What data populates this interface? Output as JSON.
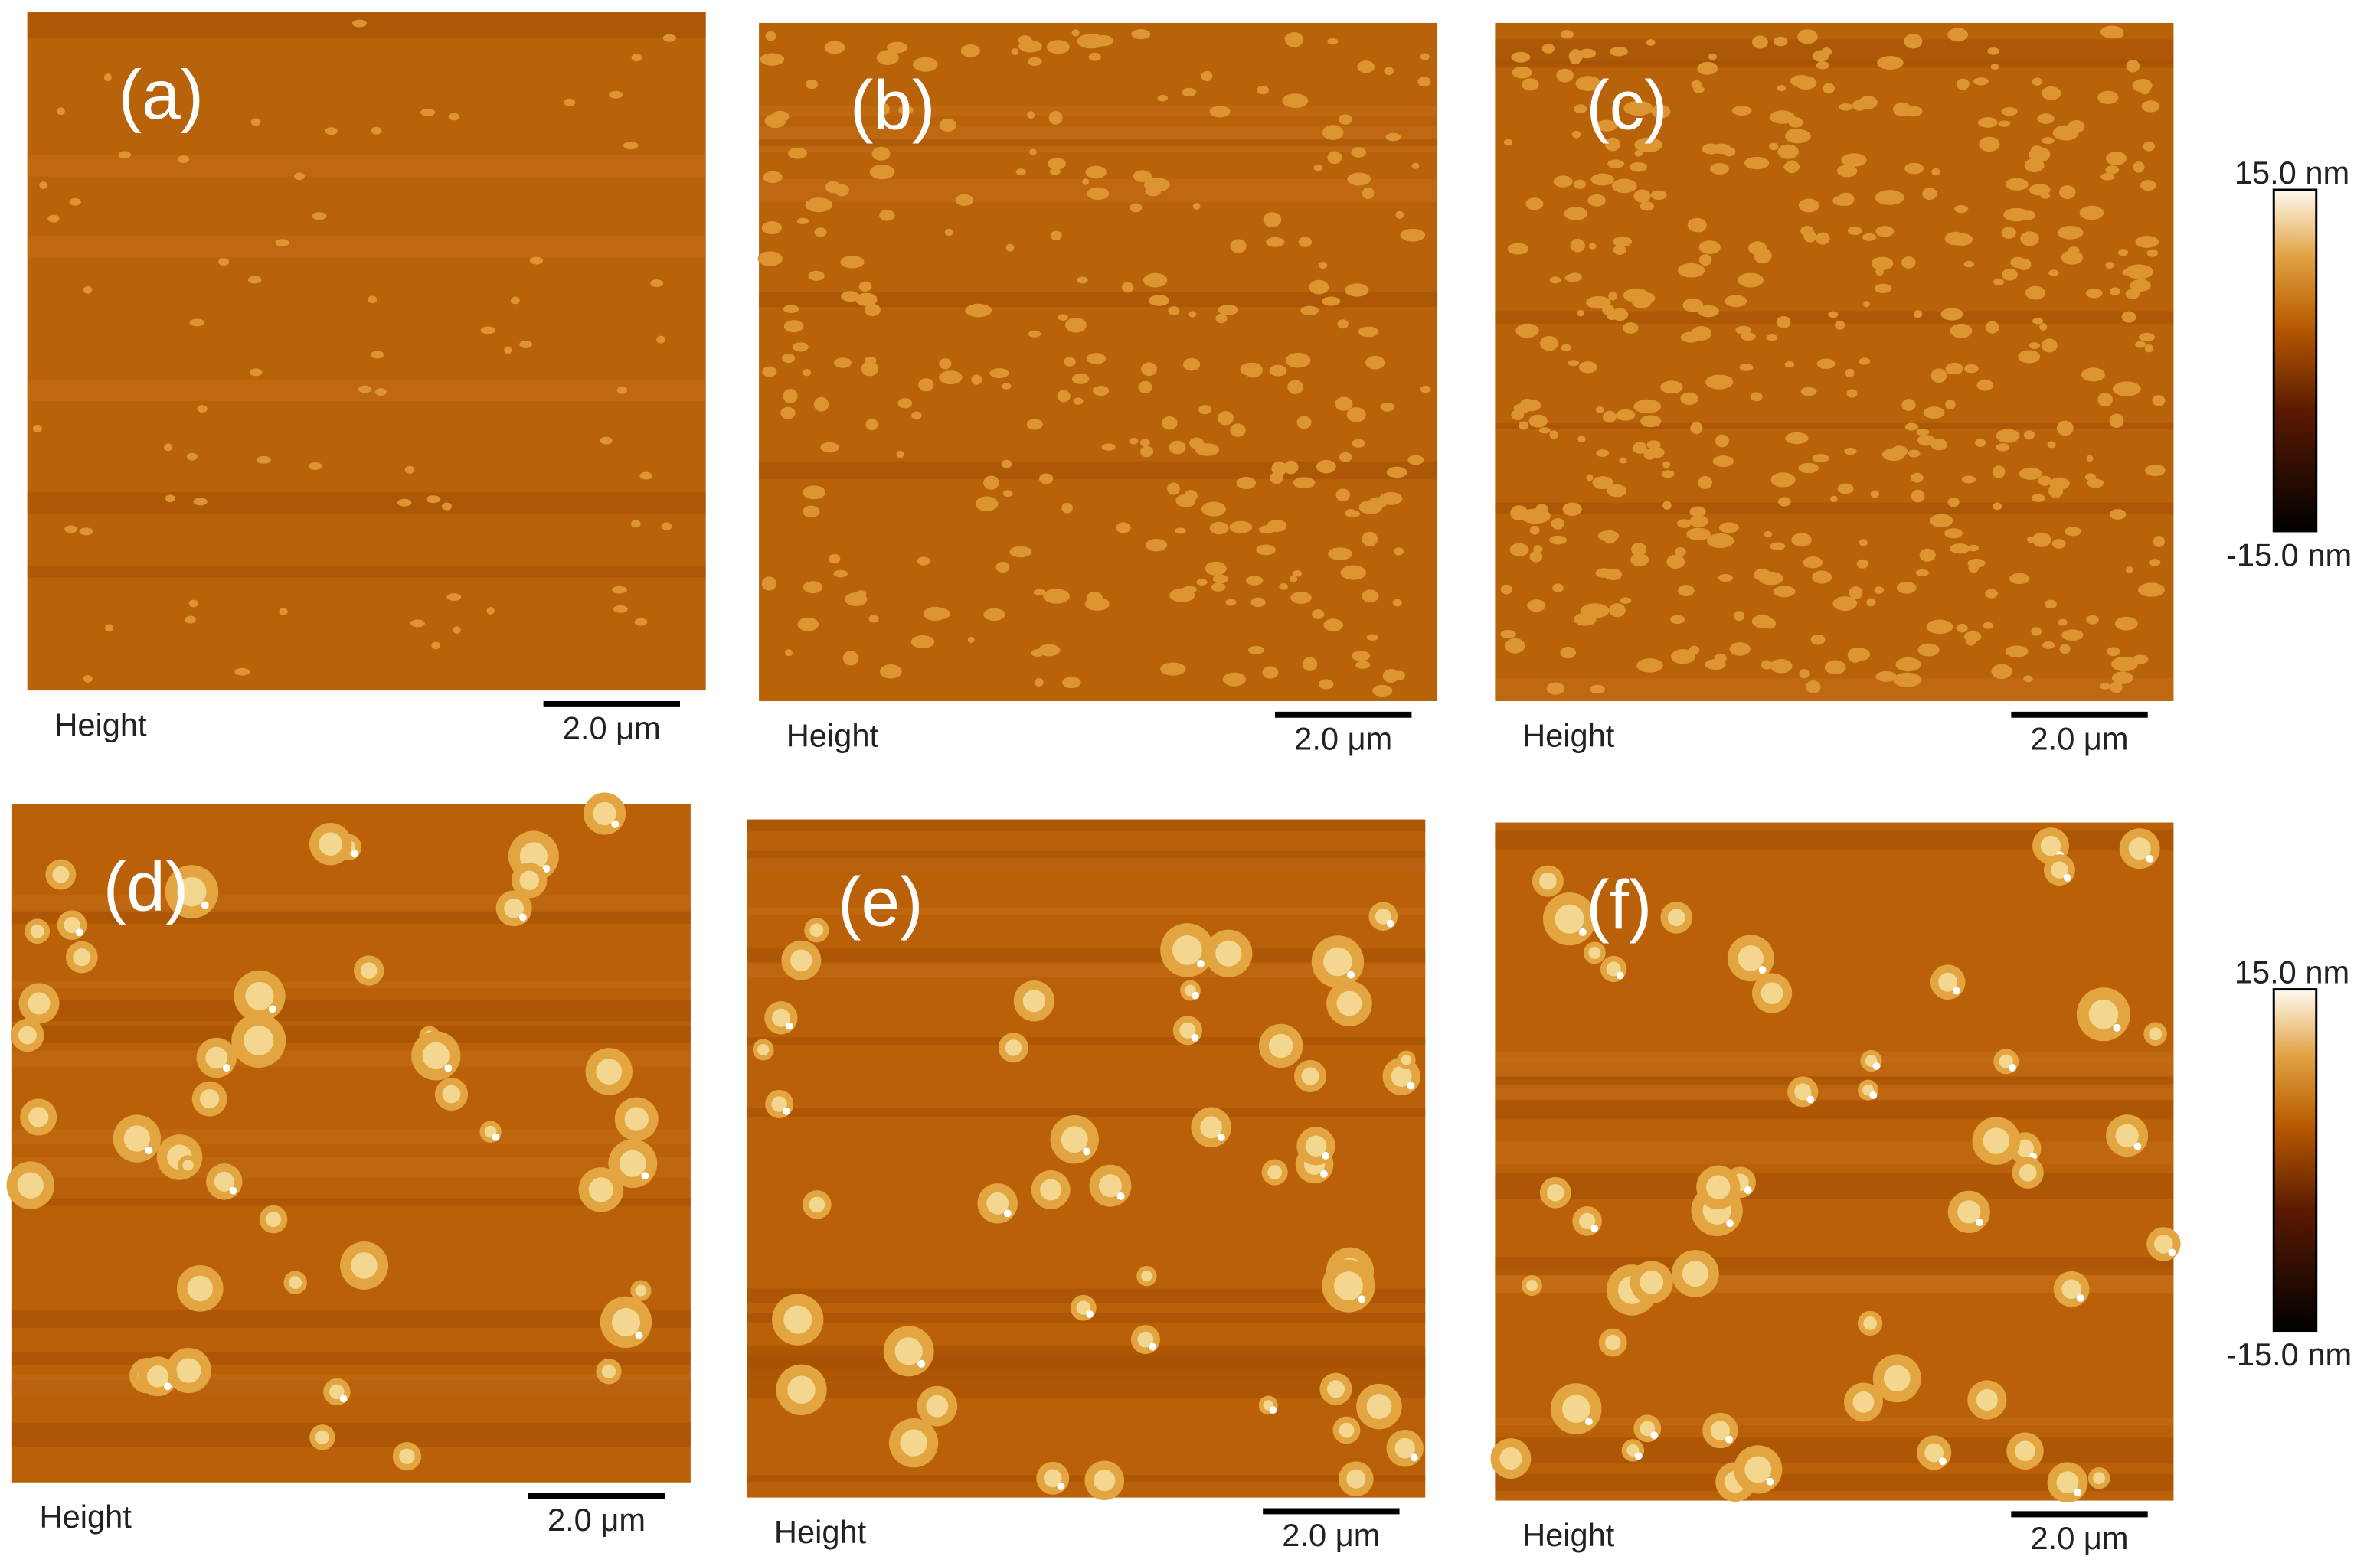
{
  "panels": [
    {
      "label": "(a)",
      "caption": "Height",
      "scale_bar": "2.0 μm"
    },
    {
      "label": "(b)",
      "caption": "Height",
      "scale_bar": "2.0 μm"
    },
    {
      "label": "(c)",
      "caption": "Height",
      "scale_bar": "2.0 μm"
    },
    {
      "label": "(d)",
      "caption": "Height",
      "scale_bar": "2.0 μm"
    },
    {
      "label": "(e)",
      "caption": "Height",
      "scale_bar": "2.0 μm"
    },
    {
      "label": "(f)",
      "caption": "Height",
      "scale_bar": "2.0 μm"
    }
  ],
  "colorbars": [
    {
      "max": "15.0 nm",
      "min": "-15.0 nm"
    },
    {
      "max": "15.0 nm",
      "min": "-15.0 nm"
    }
  ]
}
